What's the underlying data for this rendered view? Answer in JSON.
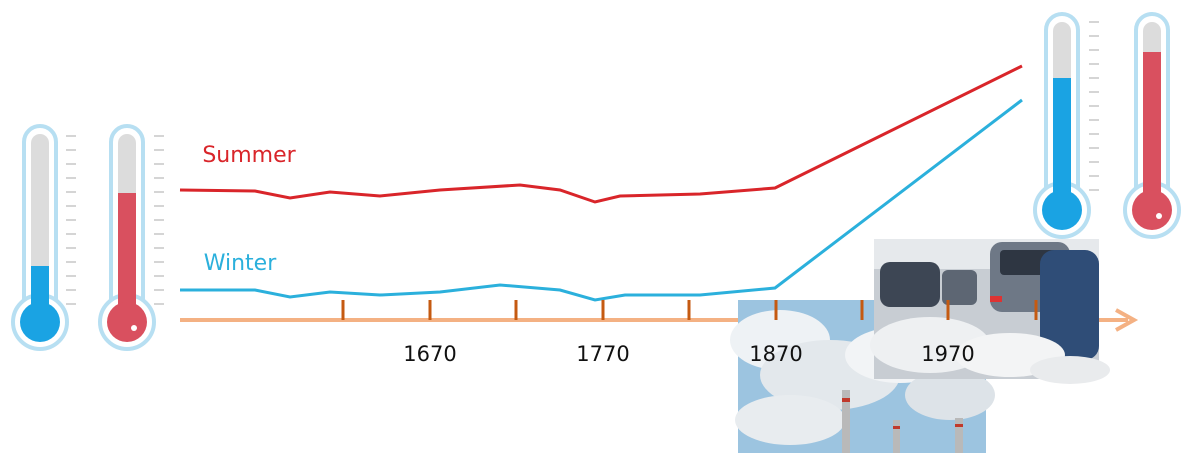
{
  "series_labels": [
    "Summer",
    "Winter"
  ],
  "axis_labels": [
    "1670",
    "1770",
    "1870",
    "1970"
  ]
}
